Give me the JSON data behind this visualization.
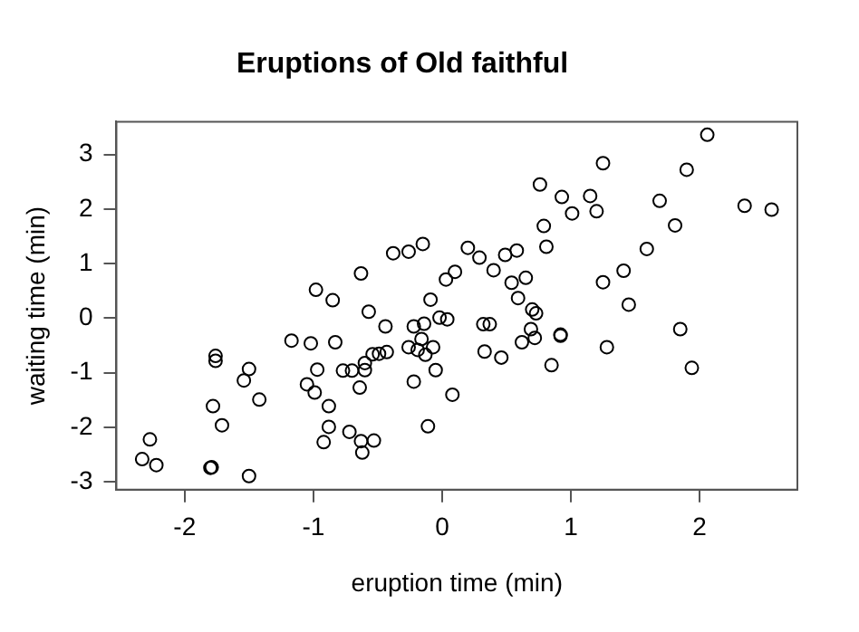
{
  "chart_data": {
    "type": "scatter",
    "title": "Eruptions of Old faithful",
    "xlabel": "eruption time (min)",
    "ylabel": "waiting time (min)",
    "x": [
      2.06,
      1.25,
      1.9,
      0.76,
      0.93,
      1.15,
      1.01,
      1.2,
      1.69,
      2.35,
      2.56,
      1.81,
      0.79,
      0.81,
      1.59,
      0.2,
      0.29,
      0.49,
      0.58,
      0.4,
      1.41,
      1.25,
      0.1,
      0.03,
      0.54,
      0.65,
      0.59,
      0.7,
      1.45,
      -0.15,
      -0.26,
      -0.38,
      -0.63,
      -0.98,
      -0.85,
      -0.09,
      -0.57,
      -0.44,
      -0.22,
      -0.14,
      -0.02,
      0.04,
      -1.17,
      -1.02,
      -0.83,
      -1.76,
      -1.76,
      -1.5,
      -1.54,
      -0.97,
      -1.05,
      -0.99,
      -0.77,
      -0.7,
      -0.6,
      -0.6,
      -0.54,
      -0.49,
      -0.43,
      -0.26,
      -0.19,
      -0.16,
      -0.13,
      -0.07,
      -0.05,
      -0.22,
      -0.64,
      0.08,
      -1.42,
      -1.78,
      -0.88,
      -1.71,
      -0.88,
      -0.72,
      -0.11,
      -0.92,
      -0.63,
      -0.53,
      -0.62,
      -2.27,
      -2.33,
      -2.22,
      -1.8,
      -1.79,
      -1.5,
      0.32,
      0.37,
      0.73,
      0.69,
      0.62,
      0.72,
      0.92,
      0.92,
      0.33,
      0.46,
      0.85,
      1.28,
      1.85,
      1.94
    ],
    "values": [
      3.36,
      2.84,
      2.72,
      2.45,
      2.22,
      2.24,
      1.92,
      1.96,
      2.15,
      2.06,
      1.99,
      1.7,
      1.69,
      1.31,
      1.27,
      1.29,
      1.11,
      1.16,
      1.24,
      0.88,
      0.87,
      0.66,
      0.85,
      0.71,
      0.65,
      0.74,
      0.37,
      0.16,
      0.25,
      1.36,
      1.22,
      1.19,
      0.82,
      0.52,
      0.33,
      0.34,
      0.12,
      -0.15,
      -0.15,
      -0.1,
      0.01,
      -0.02,
      -0.41,
      -0.46,
      -0.44,
      -0.69,
      -0.78,
      -0.93,
      -1.14,
      -0.94,
      -1.21,
      -1.36,
      -0.96,
      -0.96,
      -0.82,
      -0.95,
      -0.66,
      -0.65,
      -0.62,
      -0.53,
      -0.58,
      -0.38,
      -0.67,
      -0.53,
      -0.95,
      -1.16,
      -1.27,
      -1.4,
      -1.49,
      -1.61,
      -1.61,
      -1.96,
      -1.99,
      -2.08,
      -1.98,
      -2.27,
      -2.25,
      -2.24,
      -2.46,
      -2.22,
      -2.58,
      -2.69,
      -2.74,
      -2.73,
      -2.89,
      -0.11,
      -0.11,
      0.09,
      -0.2,
      -0.44,
      -0.36,
      -0.32,
      -0.3,
      -0.61,
      -0.72,
      -0.86,
      -0.53,
      -0.2,
      -0.91
    ],
    "color": "#000000",
    "marker": "circle",
    "xlim": [
      -2.53,
      2.76
    ],
    "ylim": [
      -3.14,
      3.6
    ],
    "xticks": [
      -2,
      -1,
      0,
      1,
      2
    ],
    "yticks": [
      -3,
      -2,
      -1,
      0,
      1,
      2,
      3
    ],
    "grid": false,
    "legend": false
  }
}
